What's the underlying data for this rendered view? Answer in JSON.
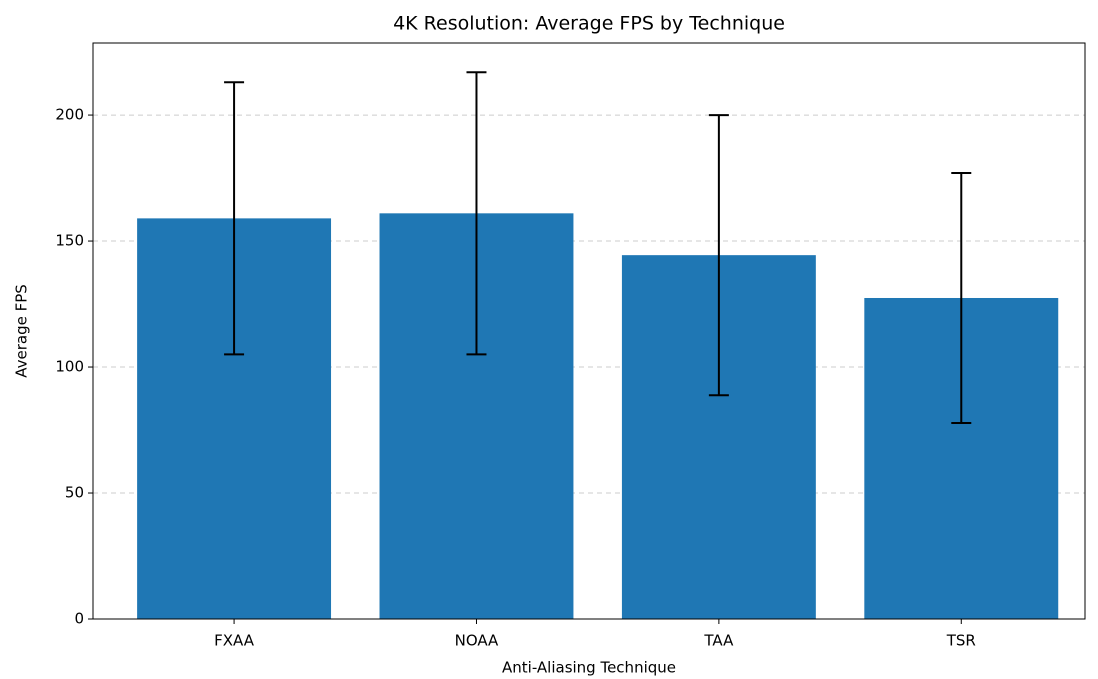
{
  "chart_data": {
    "type": "bar",
    "title": "4K Resolution: Average FPS by Technique",
    "xlabel": "Anti-Aliasing Technique",
    "ylabel": "Average FPS",
    "categories": [
      "FXAA",
      "NOAA",
      "TAA",
      "TSR"
    ],
    "values": [
      159,
      161,
      144.4,
      127.4
    ],
    "errors": [
      54,
      56,
      55.6,
      49.6
    ],
    "color": "#1f77b4",
    "ylim": [
      0,
      228.6
    ],
    "yticks": [
      0,
      50,
      100,
      150,
      200
    ],
    "grid": true
  }
}
